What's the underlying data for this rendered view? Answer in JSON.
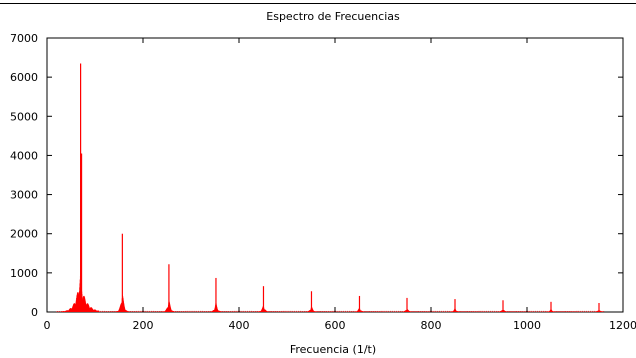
{
  "chart_data": {
    "type": "line",
    "title": "Espectro de Frecuencias",
    "xlabel": "Frecuencia (1/t)",
    "ylabel": "",
    "xlim": [
      0,
      1200
    ],
    "ylim": [
      0,
      7000
    ],
    "grid": false,
    "x_ticks": [
      0,
      200,
      400,
      600,
      800,
      1000,
      1200
    ],
    "y_ticks": [
      0,
      1000,
      2000,
      3000,
      4000,
      5000,
      6000,
      7000
    ],
    "series_color": "#ff0000",
    "peaks": [
      {
        "x": 70,
        "y": 6350
      },
      {
        "x": 72,
        "y": 4050
      },
      {
        "x": 157,
        "y": 2000
      },
      {
        "x": 254,
        "y": 1220
      },
      {
        "x": 352,
        "y": 870
      },
      {
        "x": 451,
        "y": 660
      },
      {
        "x": 551,
        "y": 530
      },
      {
        "x": 651,
        "y": 410
      },
      {
        "x": 750,
        "y": 360
      },
      {
        "x": 850,
        "y": 330
      },
      {
        "x": 950,
        "y": 300
      },
      {
        "x": 1050,
        "y": 260
      },
      {
        "x": 1150,
        "y": 230
      }
    ]
  }
}
